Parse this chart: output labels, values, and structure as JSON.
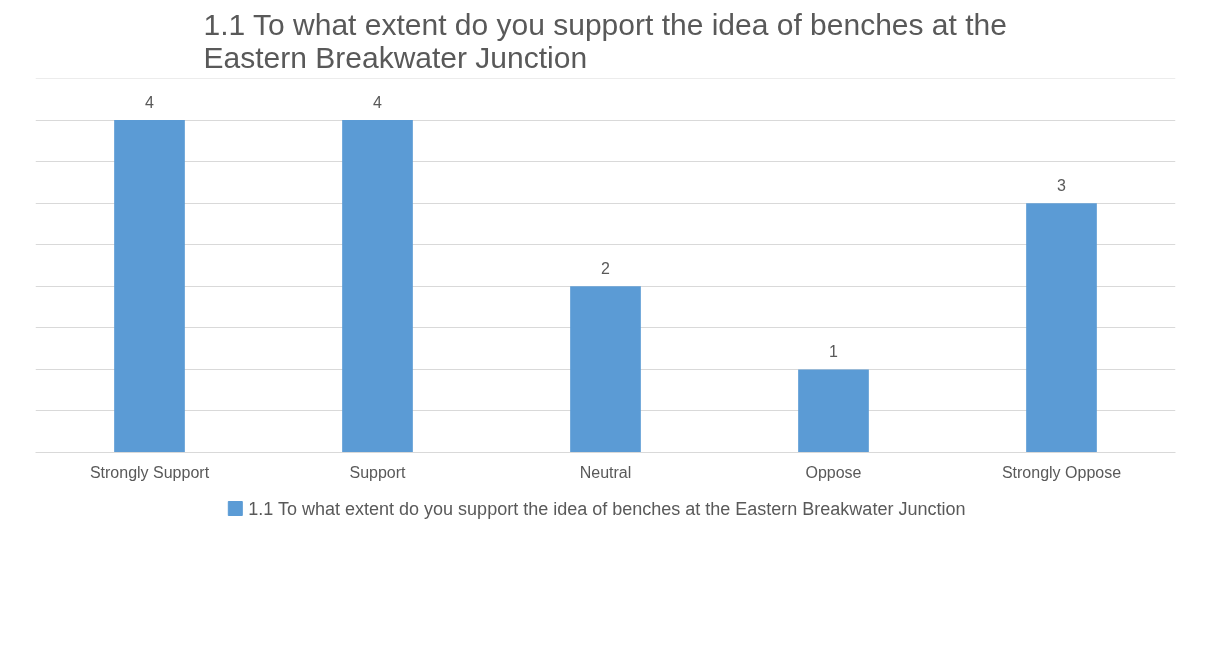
{
  "chart_data": {
    "type": "bar",
    "title": "1.1 To what extent do you support the idea of benches at the Eastern Breakwater Junction",
    "categories": [
      "Strongly Support",
      "Support",
      "Neutral",
      "Oppose",
      "Strongly Oppose"
    ],
    "series": [
      {
        "name": "1.1 To what extent do you support the idea of benches at the Eastern Breakwater Junction",
        "color": "#5b9bd5",
        "values": [
          4,
          4,
          2,
          1,
          3
        ]
      }
    ],
    "ylim": [
      0,
      4.5
    ],
    "yticks": [
      0,
      {
        "value": 0.5,
        "label": null
      },
      {
        "value": 1,
        "label": null
      },
      {
        "value": 1.5,
        "label": null
      },
      {
        "value": 2,
        "label": null
      },
      {
        "value": 2.5,
        "label": null
      },
      {
        "value": 3,
        "label": null
      },
      {
        "value": 3.5,
        "label": null
      },
      {
        "value": 4,
        "label": null
      },
      {
        "value": 4.5,
        "label": null
      }
    ],
    "tick_labels": "x",
    "grid": "y",
    "data_labels": true,
    "legend": "bottom"
  }
}
